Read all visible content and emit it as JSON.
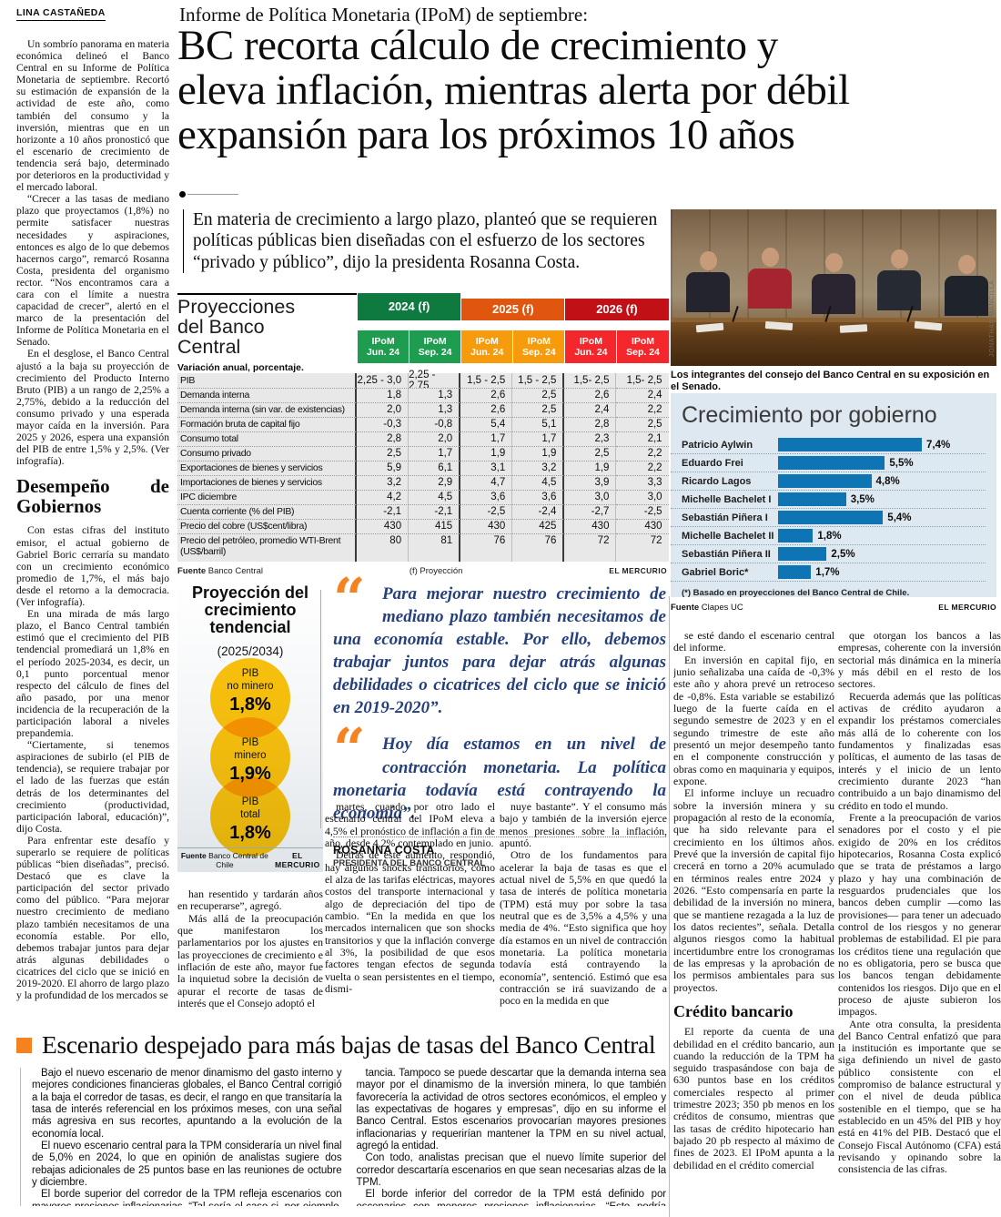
{
  "byline": "LINA CASTAÑEDA",
  "kicker": "Informe de Política Monetaria (IPoM) de septiembre:",
  "headline_lines": [
    "BC recorta cálculo de crecimiento y",
    "eleva inflación, mientras alerta por débil",
    "expansión para los próximos 10 años"
  ],
  "deck": "En materia de crecimiento a largo plazo, planteó que se requieren políticas públicas bien diseñadas con el esfuerzo de los sectores “privado y público”, dijo la presidenta Rosanna Costa.",
  "photo": {
    "caption": "Los integrantes del consejo del Banco Central en su exposición en el Senado.",
    "credit": "JONATHAN MANCILLA"
  },
  "col1": {
    "part1": [
      "Un sombrío panorama en materia económica delineó el Banco Central en su Informe de Política Monetaria de septiembre. Recortó su estimación de expansión de la actividad de este año, como también del consumo y la inversión, mientras que en un horizonte a 10 años pronosticó que el escenario de crecimiento de tendencia será bajo, determinado por deterioros en la productividad y el mercado laboral.",
      "“Crecer a las tasas de mediano plazo que proyectamos (1,8%) no permite satisfacer nuestras necesidades y aspiraciones, entonces es algo de lo que debemos hacernos cargo”, remarcó Rosanna Costa, presidenta del organismo rector. “Nos encontramos cara a cara con el límite a nuestra capacidad de crecer”, alertó en el marco de la presentación del Informe de Política Monetaria en el Senado.",
      "En el desglose, el Banco Central ajustó a la baja su proyección de crecimiento del Producto Interno Bruto (PIB) a un rango de 2,25% a 2,75%, debido a la reducción del consumo privado y una esperada mayor caída en la inversión. Para 2025 y 2026, espera una expansión del PIB de entre 1,5% y 2,5%. (Ver infografía)."
    ],
    "subhead": "Desempeño de Gobiernos",
    "part2": [
      "Con estas cifras del instituto emisor, el actual gobierno de Gabriel Boric cerraría su mandato con un crecimiento económico promedio de 1,7%, el más bajo desde el retorno a la democracia. (Ver infografía).",
      "En una mirada de más largo plazo, el Banco Central también estimó que el crecimiento del PIB tendencial promediará un 1,8% en el período 2025-2034, es decir, un 0,1 punto porcentual menor respecto del cálculo de fines del año pasado, por una menor incidencia de la recuperación de la participación laboral a niveles prepandemia.",
      "“Ciertamente, si tenemos aspiraciones de subirlo (el PIB de tendencia), se requiere trabajar por el lado de las fuerzas que están detrás de los determinantes del crecimiento (productividad, participación laboral, educación)”, dijo Costa.",
      "Para enfrentar este desafío y superarlo se requiere de políticas públicas “bien diseñadas”, precisó. Destacó que es clave la participación del sector privado como del público. “Para mejorar nuestro crecimiento de mediano plazo también necesitamos de una economía estable. Por ello, debemos trabajar juntos para dejar atrás algunas debilidades o cicatrices del ciclo que se inició en 2019-2020. El ahorro de largo plazo y la profundidad de los mercados se"
    ]
  },
  "projections_table": {
    "title": "Proyecciones del Banco Central",
    "subtitle": "Variación anual, porcentaje.",
    "year_groups": [
      "2024 (f)",
      "2025 (f)",
      "2026 (f)"
    ],
    "sub_headers": [
      "IPoM Jun. 24",
      "IPoM Sep. 24",
      "IPoM Jun. 24",
      "IPoM Sep. 24",
      "IPoM Jun. 24",
      "IPoM Sep. 24"
    ],
    "rows": [
      {
        "label": "PIB",
        "values": [
          "2,25 - 3,0",
          "2,25 - 2,75",
          "1,5 - 2,5",
          "1,5 - 2,5",
          "1,5- 2,5",
          "1,5- 2,5"
        ]
      },
      {
        "label": "Demanda interna",
        "values": [
          "1,8",
          "1,3",
          "2,6",
          "2,5",
          "2,6",
          "2,4"
        ]
      },
      {
        "label": "Demanda interna (sin var. de existencias)",
        "values": [
          "2,0",
          "1,3",
          "2,6",
          "2,5",
          "2,4",
          "2,2"
        ]
      },
      {
        "label": "Formación bruta de capital fijo",
        "values": [
          "-0,3",
          "-0,8",
          "5,4",
          "5,1",
          "2,8",
          "2,5"
        ]
      },
      {
        "label": "Consumo total",
        "values": [
          "2,8",
          "2,0",
          "1,7",
          "1,7",
          "2,3",
          "2,1"
        ]
      },
      {
        "label": "Consumo privado",
        "values": [
          "2,5",
          "1,7",
          "1,9",
          "1,9",
          "2,5",
          "2,2"
        ]
      },
      {
        "label": "Exportaciones de bienes y servicios",
        "values": [
          "5,9",
          "6,1",
          "3,1",
          "3,2",
          "1,9",
          "2,2"
        ]
      },
      {
        "label": "Importaciones de bienes y servicios",
        "values": [
          "3,2",
          "2,9",
          "4,7",
          "4,5",
          "3,9",
          "3,3"
        ]
      },
      {
        "label": "IPC diciembre",
        "values": [
          "4,2",
          "4,5",
          "3,6",
          "3,6",
          "3,0",
          "3,0"
        ]
      },
      {
        "label": "Cuenta corriente (% del PIB)",
        "values": [
          "-2,1",
          "-2,1",
          "-2,5",
          "-2,4",
          "-2,7",
          "-2,5"
        ]
      },
      {
        "label": "Precio del cobre (US$cent/libra)",
        "values": [
          "430",
          "415",
          "430",
          "425",
          "430",
          "430"
        ]
      },
      {
        "label": "Precio del petróleo, promedio WTI-Brent (US$/barril)",
        "values": [
          "80",
          "81",
          "76",
          "76",
          "72",
          "72"
        ]
      }
    ],
    "source_label": "Fuente",
    "source_name": "Banco Central",
    "note": "(f) Proyección",
    "credit": "EL MERCURIO"
  },
  "gov_chart": {
    "type": "bar",
    "title": "Crecimiento por gobierno",
    "bars": [
      {
        "label": "Patricio Aylwin",
        "value": 7.4,
        "display": "7,4%"
      },
      {
        "label": "Eduardo Frei",
        "value": 5.5,
        "display": "5,5%"
      },
      {
        "label": "Ricardo Lagos",
        "value": 4.8,
        "display": "4,8%"
      },
      {
        "label": "Michelle Bachelet I",
        "value": 3.5,
        "display": "3,5%"
      },
      {
        "label": "Sebastián Piñera I",
        "value": 5.4,
        "display": "5,4%"
      },
      {
        "label": "Michelle Bachelet II",
        "value": 1.8,
        "display": "1,8%"
      },
      {
        "label": "Sebastián Piñera II",
        "value": 2.5,
        "display": "2,5%"
      },
      {
        "label": "Gabriel Boric*",
        "value": 1.7,
        "display": "1,7%"
      }
    ],
    "xlim": [
      0,
      7.4
    ],
    "note": "(*) Basado en proyecciones del Banco Central de Chile.",
    "source_label": "Fuente",
    "source_name": "Clapes UC",
    "credit": "EL MERCURIO"
  },
  "trend_infographic": {
    "title": "Proyección del crecimiento tendencial",
    "subtitle": "(2025/2034)",
    "circles": [
      {
        "line1": "PIB",
        "line2": "no minero",
        "value": "1,8%"
      },
      {
        "line1": "PIB",
        "line2": "minero",
        "value": "1,9%"
      },
      {
        "line1": "PIB",
        "line2": "total",
        "value": "1,8%"
      }
    ],
    "source_label": "Fuente",
    "source_name": "Banco Central de Chile",
    "credit": "EL MERCURIO"
  },
  "quotes": {
    "q1": "Para mejorar nuestro crecimiento de mediano plazo también necesitamos de una economía estable. Por ello, debemos trabajar juntos para dejar atrás algunas debilidades o cicatrices del ciclo que se inició en 2019-2020”.",
    "q2": "Hoy día estamos en un nivel de contracción monetaria. La política monetaria todavía está contrayendo la economía”.",
    "author": "ROSANNA COSTA",
    "role": "PRESIDENTA DEL BANCO CENTRAL"
  },
  "body": {
    "colA": [
      "han resentido y tardarán años en recuperarse”, agregó.",
      "Más allá de la preocupación que manifestaron los parlamentarios por los ajustes en las proyecciones de crecimiento e inflación de este año, mayor fue la inquietud sobre la decisión de apurar el recorte de tasas de interés que el Consejo adoptó el"
    ],
    "colB": [
      "martes, cuando por otro lado el escenario central del IPoM eleva a 4,5% el pronóstico de inflación a fin de año, desde 4,2% contemplado en junio.",
      "Detrás de este aumento, respondió, hay algunos shocks transitorios, como el alza de las tarifas eléctricas, mayores costos del transporte internacional y algo de depreciación del tipo de cambio. “En la medida en que los mercados internalicen que son shocks transitorios y que la inflación converge al 3%, la posibilidad de que esos factores tengan efectos de segunda vuelta o sean persistentes en el tiempo, dismi-"
    ],
    "colC": [
      "nuye bastante”. Y el consumo más bajo y también de la inversión ejerce menos presiones sobre la inflación, apuntó.",
      "Otro de los fundamentos para acelerar la baja de tasas es que el actual nivel de 5,5% en que quedó la tasa de interés de política monetaria (TPM) está muy por sobre la tasa neutral que es de 3,5% a 4,5% y una media de 4%. “Esto significa que hoy día estamos en un nivel de contracción monetaria. La política monetaria todavía está contrayendo la economía”, sentenció. Estimó que esa contracción se irá suavizando de a poco en la medida en que"
    ],
    "colD_a": [
      "se esté dando el escenario central del informe.",
      "En inversión en capital fijo, en junio señalizaba una caída de -0,3% este año y ahora prevé un retroceso de -0,8%. Esta variable se estabilizó luego de la fuerte caída en el segundo semestre de 2023 y en el segundo trimestre de este año presentó un mejor desempeño tanto en el componente construcción y obras como en maquinaria y equipos, expone.",
      "El informe incluye un recuadro sobre la inversión minera y su propagación al resto de la economía, que ha sido relevante para el crecimiento en los últimos años. Prevé que la inversión de capital fijo crecerá en torno a 20% acumulado en términos reales entre 2024 y 2026. “Esto compensaría en parte la debilidad de la inversión no minera, que se mantiene rezagada a la luz de los datos recientes”, señala. Detalla algunos riesgos como la habitual incertidumbre entre los cronogramas de las empresas y la aprobación de los permisos ambientales para sus proyectos."
    ],
    "colD_subhead": "Crédito bancario",
    "colD_b": [
      "El reporte da cuenta de una debilidad en el crédito bancario, aun cuando la reducción de la TPM ha seguido traspasándose con baja de 630 puntos base en los créditos comerciales respecto al primer trimestre 2023; 350 pb menos en los créditos de consumo, mientras que las tasas de crédito hipotecario han bajado 20 pb respecto al máximo de fines de 2023. El IPoM apunta a la debilidad en el crédito comercial"
    ],
    "colE": [
      "que otorgan los bancos a las empresas, coherente con la inversión sectorial más dinámica en la minería y más débil en el resto de los sectores.",
      "Recuerda además que las políticas activas de crédito ayudaron a expandir los préstamos comerciales más allá de lo coherente con los fundamentos y finalizadas esas políticas, el aumento de las tasas de interés y el inicio de un lento crecimiento durante 2023 “han contribuido a un bajo dinamismo del crédito en todo el mundo.",
      "Frente a la preocupación de varios senadores por el costo y el pie exigido de 20% en los créditos hipotecarios, Rosanna Costa explicó que se trata de préstamos a largo plazo y hay una combinación de resguardos prudenciales que los bancos deben cumplir —como las provisiones— para tener un adecuado control de los riesgos y no generar problemas de estabilidad. El pie para los créditos tiene una regulación que no es obligatoria, pero se busca que los bancos tengan debidamente contenidos los riesgos. Dijo que en el proceso de ajuste subieron los impagos.",
      "Ante otra consulta, la presidenta del Banco Central enfatizó que para la institución es importante que se siga definiendo un nivel de gasto público consistente con el compromiso de balance estructural y con el nivel de deuda pública sostenible en el tiempo, que se ha establecido en un 45% del PIB y hoy está en 41% del PIB. Destacó que el Consejo Fiscal Autónomo (CFA) está revisando y opinando sobre la consistencia de las cifras."
    ]
  },
  "box": {
    "title": "Escenario despejado para más bajas de tasas del Banco Central",
    "colA": [
      "Bajo el nuevo escenario de menor dinamismo del gasto interno y mejores condiciones financieras globales, el Banco Central corrigió a la baja el corredor de tasas, es decir, el rango en que transitaría la tasa de interés referencial en los próximos meses, con una señal más agresiva en sus recortes, apuntando a la evolución de la economía local.",
      "El nuevo escenario central para la TPM consideraría un nivel final de 5,0% en 2024, lo que en opinión de analistas sugiere dos rebajas adicionales de 25 puntos base en las reuniones de octubre y diciembre.",
      "El borde superior del corredor de la TPM refleja escenarios con mayores presiones inflacionarias. “Tal sería el caso si, por ejemplo, el aumento de la inflación termina siendo más persistente que lo contemplado y/o si los mecanismos de propagación de la inflación adquieren mayor impor-"
    ],
    "colB": [
      "tancia. Tampoco se puede descartar que la demanda interna sea mayor por el dinamismo de la inversión minera, lo que también favorecería la actividad de otros sectores económicos, el empleo y las expectativas de hogares y empresas”, dijo en su informe el Banco Central. Estos escenarios provocarían mayores presiones inflacionarias y requerirían mantener la TPM en su nivel actual, agregó la entidad.",
      "Con todo, analistas precisan que el nuevo límite superior del corredor descartaría escenarios en que sean necesarias alzas de la TPM.",
      "El borde inferior del corredor de la TPM está definido por escenarios con menores presiones inflacionarias. “Esto podría suceder, por ejemplo, si se intensifica y/o prolonga la debilidad que mostraron la actividad y la demanda en el segundo trimestre”, señaló el organismo."
    ]
  },
  "colors": {
    "green_dark": "#0F7A3F",
    "green": "#1E9C4F",
    "orange_dark": "#E0560E",
    "orange": "#F69B0C",
    "red_dark": "#C11116",
    "red": "#F4272C",
    "bar_blue": "#0E74B4",
    "chart_bg": "#DEE8F0",
    "circle_yellow": "#FEC40D",
    "accent_orange": "#F5821F",
    "quote_blue": "#25407E"
  }
}
